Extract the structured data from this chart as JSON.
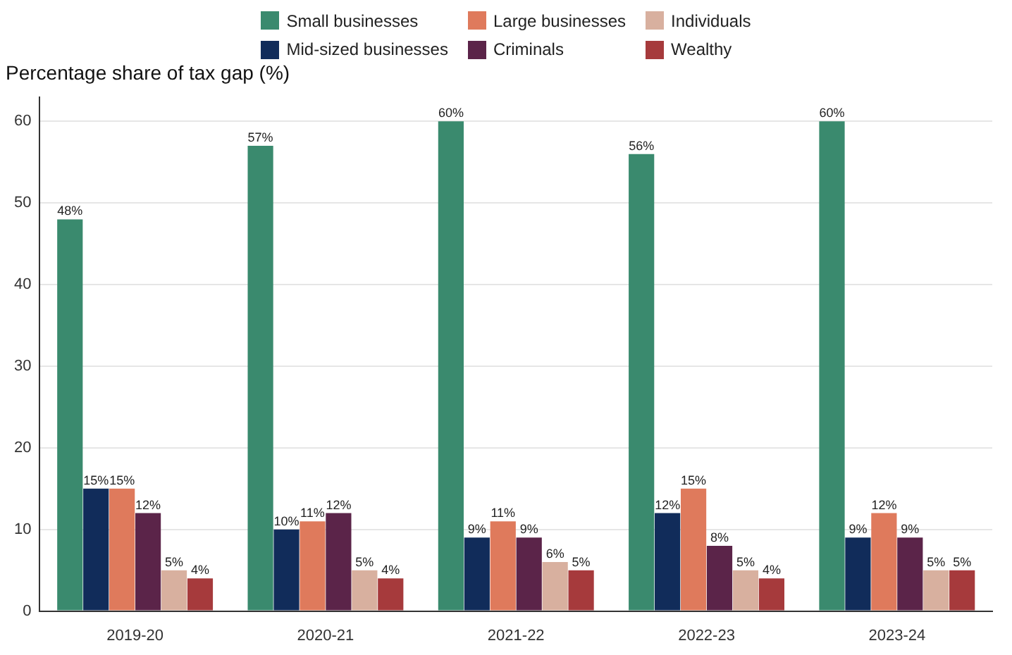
{
  "chart_data": {
    "type": "bar",
    "title": "Percentage share of tax gap (%)",
    "categories": [
      "2019-20",
      "2020-21",
      "2021-22",
      "2022-23",
      "2023-24"
    ],
    "series": [
      {
        "name": "Small businesses",
        "color": "#3a8a6e",
        "values": [
          48,
          57,
          60,
          56,
          60
        ],
        "value_labels": [
          "48%",
          "57%",
          "60%",
          "56%",
          "60%"
        ]
      },
      {
        "name": "Mid-sized businesses",
        "color": "#112c5a",
        "values": [
          15,
          10,
          9,
          12,
          9
        ],
        "value_labels": [
          "15%",
          "10%",
          "9%",
          "12%",
          "9%"
        ]
      },
      {
        "name": "Large businesses",
        "color": "#df7a5c",
        "values": [
          15,
          11,
          11,
          15,
          12
        ],
        "value_labels": [
          "15%",
          "11%",
          "11%",
          "15%",
          "12%"
        ]
      },
      {
        "name": "Criminals",
        "color": "#5b2449",
        "values": [
          12,
          12,
          9,
          8,
          9
        ],
        "value_labels": [
          "12%",
          "12%",
          "9%",
          "8%",
          "9%"
        ]
      },
      {
        "name": "Individuals",
        "color": "#d8b09f",
        "values": [
          5,
          5,
          6,
          5,
          5
        ],
        "value_labels": [
          "5%",
          "5%",
          "6%",
          "5%",
          "5%"
        ]
      },
      {
        "name": "Wealthy",
        "color": "#a63a3c",
        "values": [
          4,
          4,
          5,
          4,
          5
        ],
        "value_labels": [
          "4%",
          "4%",
          "5%",
          "4%",
          "5%"
        ]
      }
    ],
    "ylim": [
      0,
      63
    ],
    "yticks": [
      0,
      10,
      20,
      30,
      40,
      50,
      60
    ],
    "grid": "y",
    "legend": "top"
  }
}
